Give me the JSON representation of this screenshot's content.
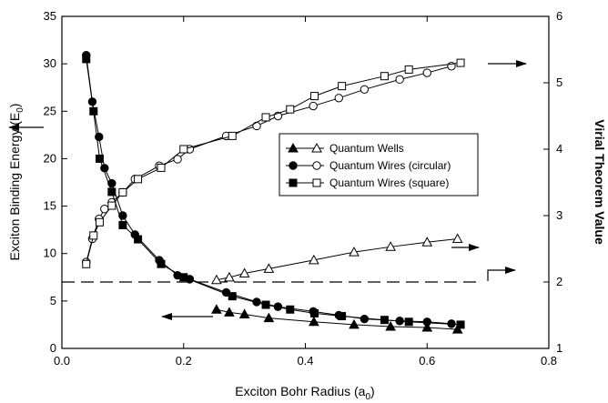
{
  "chart_data": {
    "type": "scatter",
    "xlabel": "Exciton Bohr Radius (a",
    "xlabel_sub": "0",
    "xlabel_end": ")",
    "ylabel": "Exciton Binding Energy (E",
    "ylabel_sub": "0",
    "ylabel_end": ")",
    "y2label": "Virial Theorem Value",
    "xlim": [
      0,
      0.8
    ],
    "ylim": [
      0,
      35
    ],
    "y2lim": [
      1,
      6
    ],
    "x_ticks": [
      0.0,
      0.2,
      0.4,
      0.6,
      0.8
    ],
    "x_tick_labels": [
      "0.0",
      "0.2",
      "0.4",
      "0.6",
      "0.8"
    ],
    "y_ticks": [
      0,
      5,
      10,
      15,
      20,
      25,
      30,
      35
    ],
    "y_tick_labels": [
      "0",
      "5",
      "10",
      "15",
      "20",
      "25",
      "30",
      "35"
    ],
    "y2_ticks": [
      1,
      2,
      3,
      4,
      5,
      6
    ],
    "y2_tick_labels": [
      "1",
      "2",
      "3",
      "4",
      "5",
      "6"
    ],
    "grid": false,
    "legend_position": "center-right",
    "legend": [
      {
        "label": "Quantum Wells",
        "marker": "triangle"
      },
      {
        "label": "Quantum Wires (circular)",
        "marker": "circle"
      },
      {
        "label": "Quantum Wires (square)",
        "marker": "square"
      }
    ],
    "reference_line": {
      "axis": "y2",
      "value": 2,
      "x_from": 0.0,
      "x_to": 0.69,
      "style": "dashed"
    },
    "series": [
      {
        "axis": "y",
        "marker": "triangle",
        "filled": true,
        "x": [
          0.254,
          0.275,
          0.3,
          0.34,
          0.414,
          0.48,
          0.54,
          0.6,
          0.65
        ],
        "y": [
          4.1,
          3.8,
          3.6,
          3.2,
          2.8,
          2.5,
          2.3,
          2.2,
          2.0
        ]
      },
      {
        "axis": "y2",
        "marker": "triangle",
        "filled": false,
        "x": [
          0.254,
          0.275,
          0.3,
          0.34,
          0.414,
          0.48,
          0.54,
          0.6,
          0.65
        ],
        "y": [
          2.03,
          2.07,
          2.13,
          2.2,
          2.33,
          2.45,
          2.53,
          2.6,
          2.65
        ]
      },
      {
        "axis": "y",
        "marker": "circle",
        "filled": true,
        "x": [
          0.04,
          0.05,
          0.061,
          0.07,
          0.082,
          0.1,
          0.12,
          0.16,
          0.19,
          0.21,
          0.27,
          0.32,
          0.355,
          0.413,
          0.455,
          0.497,
          0.555,
          0.6,
          0.64
        ],
        "y": [
          30.9,
          26.0,
          22.3,
          19.0,
          17.4,
          14.0,
          12.0,
          9.3,
          7.7,
          7.3,
          5.9,
          4.9,
          4.4,
          3.9,
          3.5,
          3.1,
          2.9,
          2.8,
          2.6
        ]
      },
      {
        "axis": "y2",
        "marker": "circle",
        "filled": false,
        "x": [
          0.04,
          0.05,
          0.061,
          0.07,
          0.082,
          0.1,
          0.12,
          0.16,
          0.19,
          0.21,
          0.27,
          0.32,
          0.355,
          0.413,
          0.455,
          0.497,
          0.555,
          0.6,
          0.64
        ],
        "y": [
          2.3,
          2.65,
          2.95,
          3.1,
          3.2,
          3.35,
          3.55,
          3.75,
          3.85,
          4.0,
          4.2,
          4.35,
          4.5,
          4.65,
          4.77,
          4.9,
          5.05,
          5.15,
          5.25
        ]
      },
      {
        "axis": "y",
        "marker": "square",
        "filled": true,
        "x": [
          0.04,
          0.052,
          0.062,
          0.082,
          0.1,
          0.125,
          0.163,
          0.2,
          0.28,
          0.335,
          0.375,
          0.415,
          0.46,
          0.53,
          0.57,
          0.655
        ],
        "y": [
          30.5,
          25.0,
          20.0,
          16.5,
          13.0,
          11.5,
          8.9,
          7.5,
          5.5,
          4.6,
          4.1,
          3.7,
          3.4,
          3.0,
          2.8,
          2.5
        ]
      },
      {
        "axis": "y2",
        "marker": "square",
        "filled": false,
        "x": [
          0.04,
          0.052,
          0.062,
          0.082,
          0.1,
          0.125,
          0.163,
          0.2,
          0.28,
          0.335,
          0.375,
          0.415,
          0.46,
          0.53,
          0.57,
          0.655
        ],
        "y": [
          2.27,
          2.7,
          2.9,
          3.15,
          3.35,
          3.55,
          3.72,
          4.0,
          4.2,
          4.48,
          4.6,
          4.8,
          4.95,
          5.1,
          5.2,
          5.3
        ]
      }
    ]
  }
}
